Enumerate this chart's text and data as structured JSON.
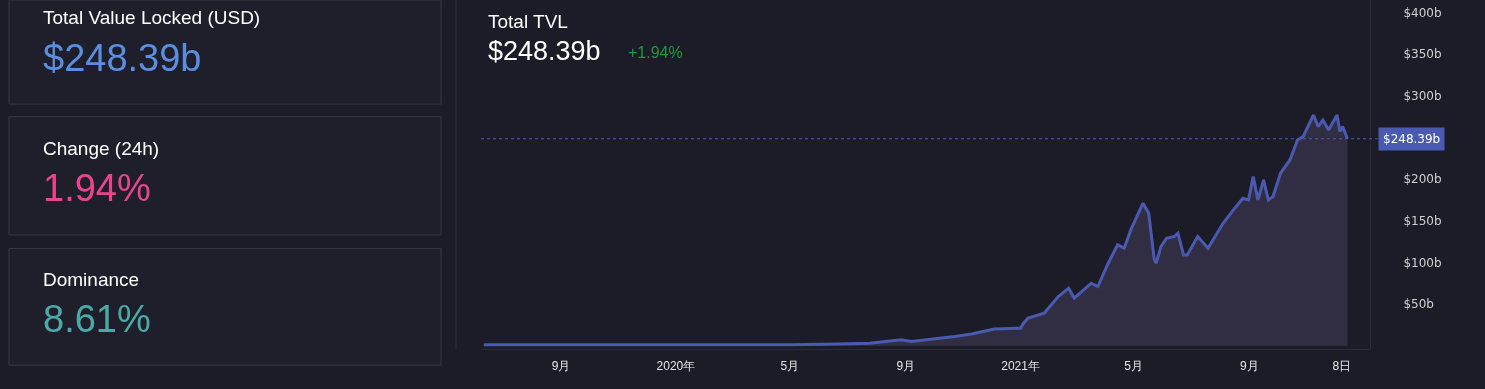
{
  "chart_data": [
    {
      "type": "other",
      "annotations": [
        "Total Value Locked (USD)",
        "$248.39b",
        "Change (24h)",
        "1.94%",
        "Dominance",
        "8.61%"
      ]
    },
    {
      "type": "area",
      "title": "Total TVL",
      "subtitle": "$248.39b",
      "annotations": [
        "+1.94%"
      ],
      "x": [
        "2019-06-11",
        "2019-09-01",
        "2020-01-01",
        "2020-05-01",
        "2020-06-22",
        "2020-07-25",
        "2020-08-27",
        "2020-09-07",
        "2020-10-23",
        "2020-11-10",
        "2020-12-04",
        "2021-01-01",
        "2021-01-04",
        "2021-01-09",
        "2021-01-26",
        "2021-02-10",
        "2021-02-21",
        "2021-02-27",
        "2021-03-17",
        "2021-03-24",
        "2021-04-04",
        "2021-04-14",
        "2021-04-21",
        "2021-04-28",
        "2021-05-11",
        "2021-05-17",
        "2021-05-23",
        "2021-05-25",
        "2021-05-30",
        "2021-06-05",
        "2021-06-13",
        "2021-06-17",
        "2021-06-23",
        "2021-06-27",
        "2021-07-08",
        "2021-07-19",
        "2021-08-04",
        "2021-08-15",
        "2021-08-25",
        "2021-08-31",
        "2021-09-05",
        "2021-09-10",
        "2021-09-16",
        "2021-09-21",
        "2021-09-26",
        "2021-10-04",
        "2021-10-14",
        "2021-10-22",
        "2021-10-28",
        "2021-11-08",
        "2021-11-13",
        "2021-11-18",
        "2021-11-24",
        "2021-12-03",
        "2021-12-06",
        "2021-12-09",
        "2021-12-14"
      ],
      "series": [
        {
          "color": "#4a5ab0",
          "values": [
            1,
            1,
            1,
            1,
            2,
            3,
            7,
            5,
            11,
            14,
            20,
            21,
            27,
            33,
            39,
            59,
            69,
            57,
            75,
            71,
            99,
            121,
            117,
            139,
            171,
            159,
            103,
            99,
            119,
            129,
            131,
            135,
            109,
            109,
            131,
            117,
            147,
            163,
            177,
            175,
            203,
            175,
            199,
            175,
            179,
            207,
            223,
            247,
            251,
            277,
            263,
            271,
            259,
            277,
            257,
            263,
            248.39
          ]
        }
      ],
      "xlim": [
        "2019-06-08",
        "2022-01-07"
      ],
      "xticks": [
        {
          "value": "2019-09-01",
          "label": "9月"
        },
        {
          "value": "2020-01-01",
          "label": "2020年"
        },
        {
          "value": "2020-05-01",
          "label": "5月"
        },
        {
          "value": "2020-09-01",
          "label": "9月"
        },
        {
          "value": "2021-01-01",
          "label": "2021年"
        },
        {
          "value": "2021-05-01",
          "label": "5月"
        },
        {
          "value": "2021-09-01",
          "label": "9月"
        },
        {
          "value": "2021-12-08",
          "label": "8日"
        }
      ],
      "ylim": [
        -4,
        415
      ],
      "yticks": [
        {
          "value": 50,
          "label": "$50b"
        },
        {
          "value": 100,
          "label": "$100b"
        },
        {
          "value": 150,
          "label": "$150b"
        },
        {
          "value": 200,
          "label": "$200b"
        },
        {
          "value": 300,
          "label": "$300b"
        },
        {
          "value": 350,
          "label": "$350b"
        },
        {
          "value": 400,
          "label": "$400b"
        }
      ],
      "ref_lines": [
        {
          "axis": "y",
          "value": 248.39,
          "label": "$248.39b",
          "color": "#4a5ab0",
          "line_style": "dotted"
        }
      ],
      "grid": false,
      "marker": "none",
      "line_style": "solid"
    }
  ]
}
